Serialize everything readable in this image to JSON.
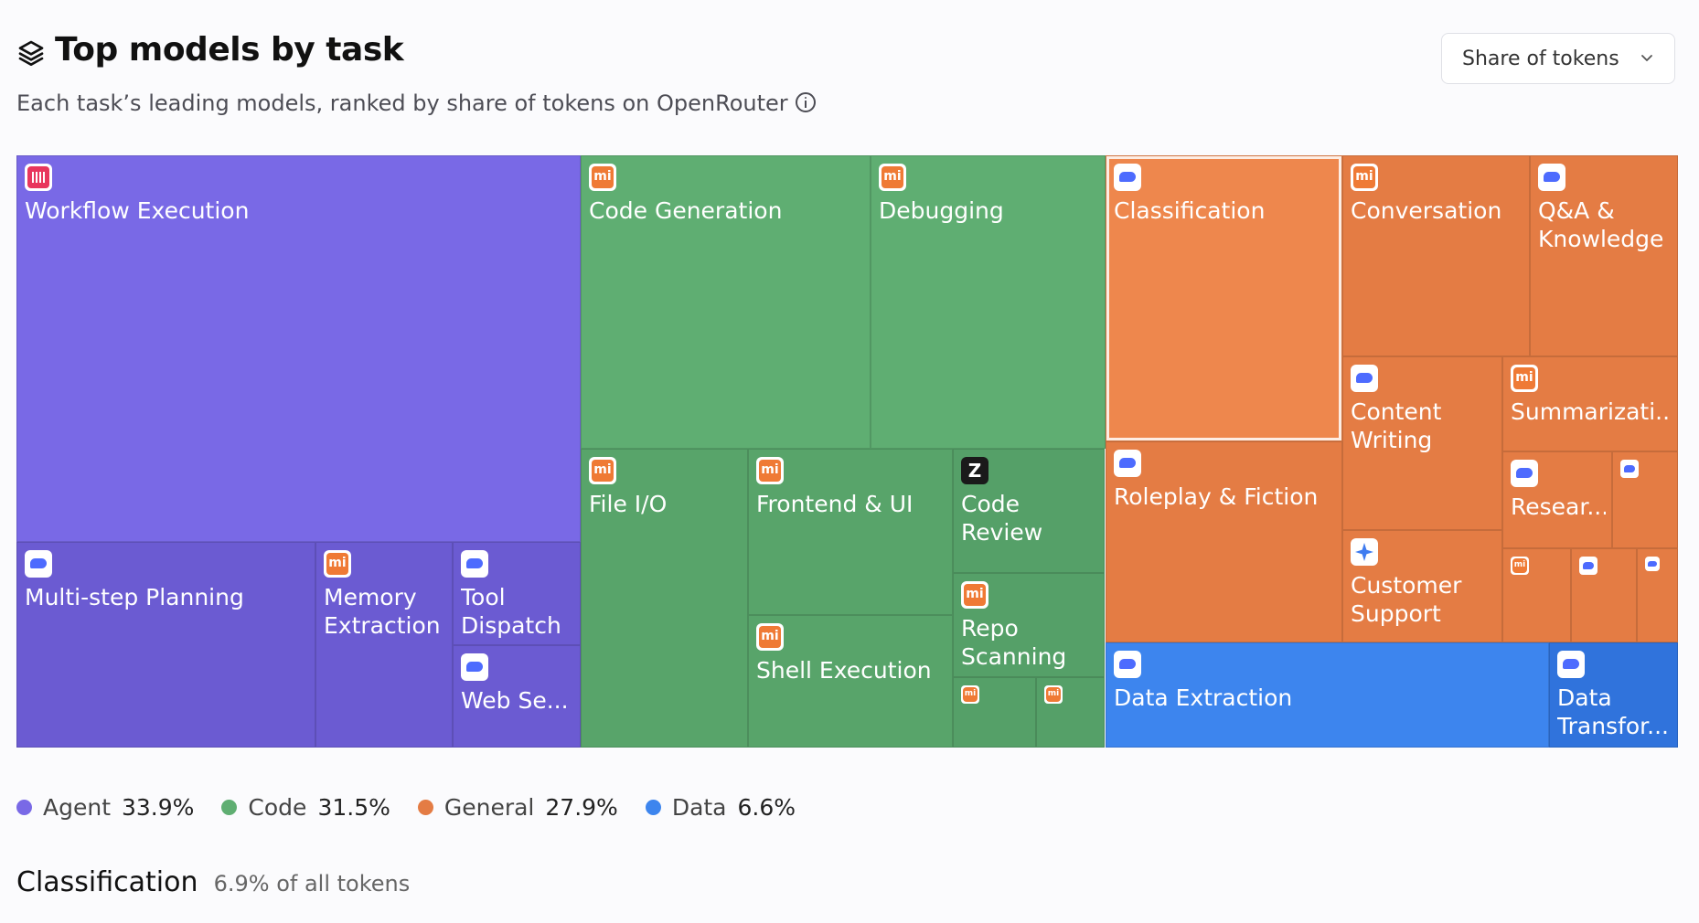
{
  "header": {
    "title": "Top models by task",
    "subtitle": "Each task’s leading models, ranked by share of tokens on OpenRouter",
    "metric_select": "Share of tokens"
  },
  "chart_data": {
    "type": "treemap",
    "metric": "Share of tokens",
    "groups": [
      {
        "name": "Agent",
        "share": "33.9%",
        "color": "#7969e6"
      },
      {
        "name": "Code",
        "share": "31.5%",
        "color": "#5fae72"
      },
      {
        "name": "General",
        "share": "27.9%",
        "color": "#e47c44"
      },
      {
        "name": "Data",
        "share": "6.6%",
        "color": "#3d85ee"
      }
    ],
    "tiles": [
      {
        "label": "Workflow Execution",
        "group": "Agent",
        "icon": "voice-wave-icon"
      },
      {
        "label": "Multi-step Planning",
        "group": "Agent",
        "icon": "deepseek-whale-icon"
      },
      {
        "label": "Memory\nExtraction",
        "group": "Agent",
        "icon": "xiaomi-mi-icon"
      },
      {
        "label": "Tool\nDispatch",
        "group": "Agent",
        "icon": "deepseek-whale-icon"
      },
      {
        "label": "Web Se...",
        "group": "Agent",
        "icon": "deepseek-whale-icon"
      },
      {
        "label": "Code Generation",
        "group": "Code",
        "icon": "xiaomi-mi-icon"
      },
      {
        "label": "Debugging",
        "group": "Code",
        "icon": "xiaomi-mi-icon"
      },
      {
        "label": "File I/O",
        "group": "Code",
        "icon": "xiaomi-mi-icon"
      },
      {
        "label": "Frontend & UI",
        "group": "Code",
        "icon": "xiaomi-mi-icon"
      },
      {
        "label": "Shell Execution",
        "group": "Code",
        "icon": "xiaomi-mi-icon"
      },
      {
        "label": "Code\nReview",
        "group": "Code",
        "icon": "zai-z-icon"
      },
      {
        "label": "Repo\nScanning",
        "group": "Code",
        "icon": "xiaomi-mi-icon"
      },
      {
        "label": "",
        "group": "Code",
        "icon": "xiaomi-mi-icon"
      },
      {
        "label": "",
        "group": "Code",
        "icon": "xiaomi-mi-icon"
      },
      {
        "label": "Classification",
        "group": "General",
        "icon": "deepseek-whale-icon",
        "selected": true
      },
      {
        "label": "Roleplay & Fiction",
        "group": "General",
        "icon": "deepseek-whale-icon"
      },
      {
        "label": "Conversation",
        "group": "General",
        "icon": "xiaomi-mi-icon"
      },
      {
        "label": "Q&A &\nKnowledge",
        "group": "General",
        "icon": "deepseek-whale-icon"
      },
      {
        "label": "Content\nWriting",
        "group": "General",
        "icon": "deepseek-whale-icon"
      },
      {
        "label": "Summarizati...",
        "group": "General",
        "icon": "xiaomi-mi-icon"
      },
      {
        "label": "Resear...",
        "group": "General",
        "icon": "deepseek-whale-icon"
      },
      {
        "label": "",
        "group": "General",
        "icon": "deepseek-whale-icon"
      },
      {
        "label": "Customer\nSupport",
        "group": "General",
        "icon": "gemini-sparkle-icon"
      },
      {
        "label": "",
        "group": "General",
        "icon": "xiaomi-mi-icon"
      },
      {
        "label": "",
        "group": "General",
        "icon": "deepseek-whale-icon"
      },
      {
        "label": "",
        "group": "General",
        "icon": "deepseek-whale-icon"
      },
      {
        "label": "Data Extraction",
        "group": "Data",
        "icon": "deepseek-whale-icon"
      },
      {
        "label": "Data\nTransfor...",
        "group": "Data",
        "icon": "deepseek-whale-icon"
      }
    ]
  },
  "selection": {
    "title": "Classification",
    "share": "6.9% of all tokens"
  }
}
